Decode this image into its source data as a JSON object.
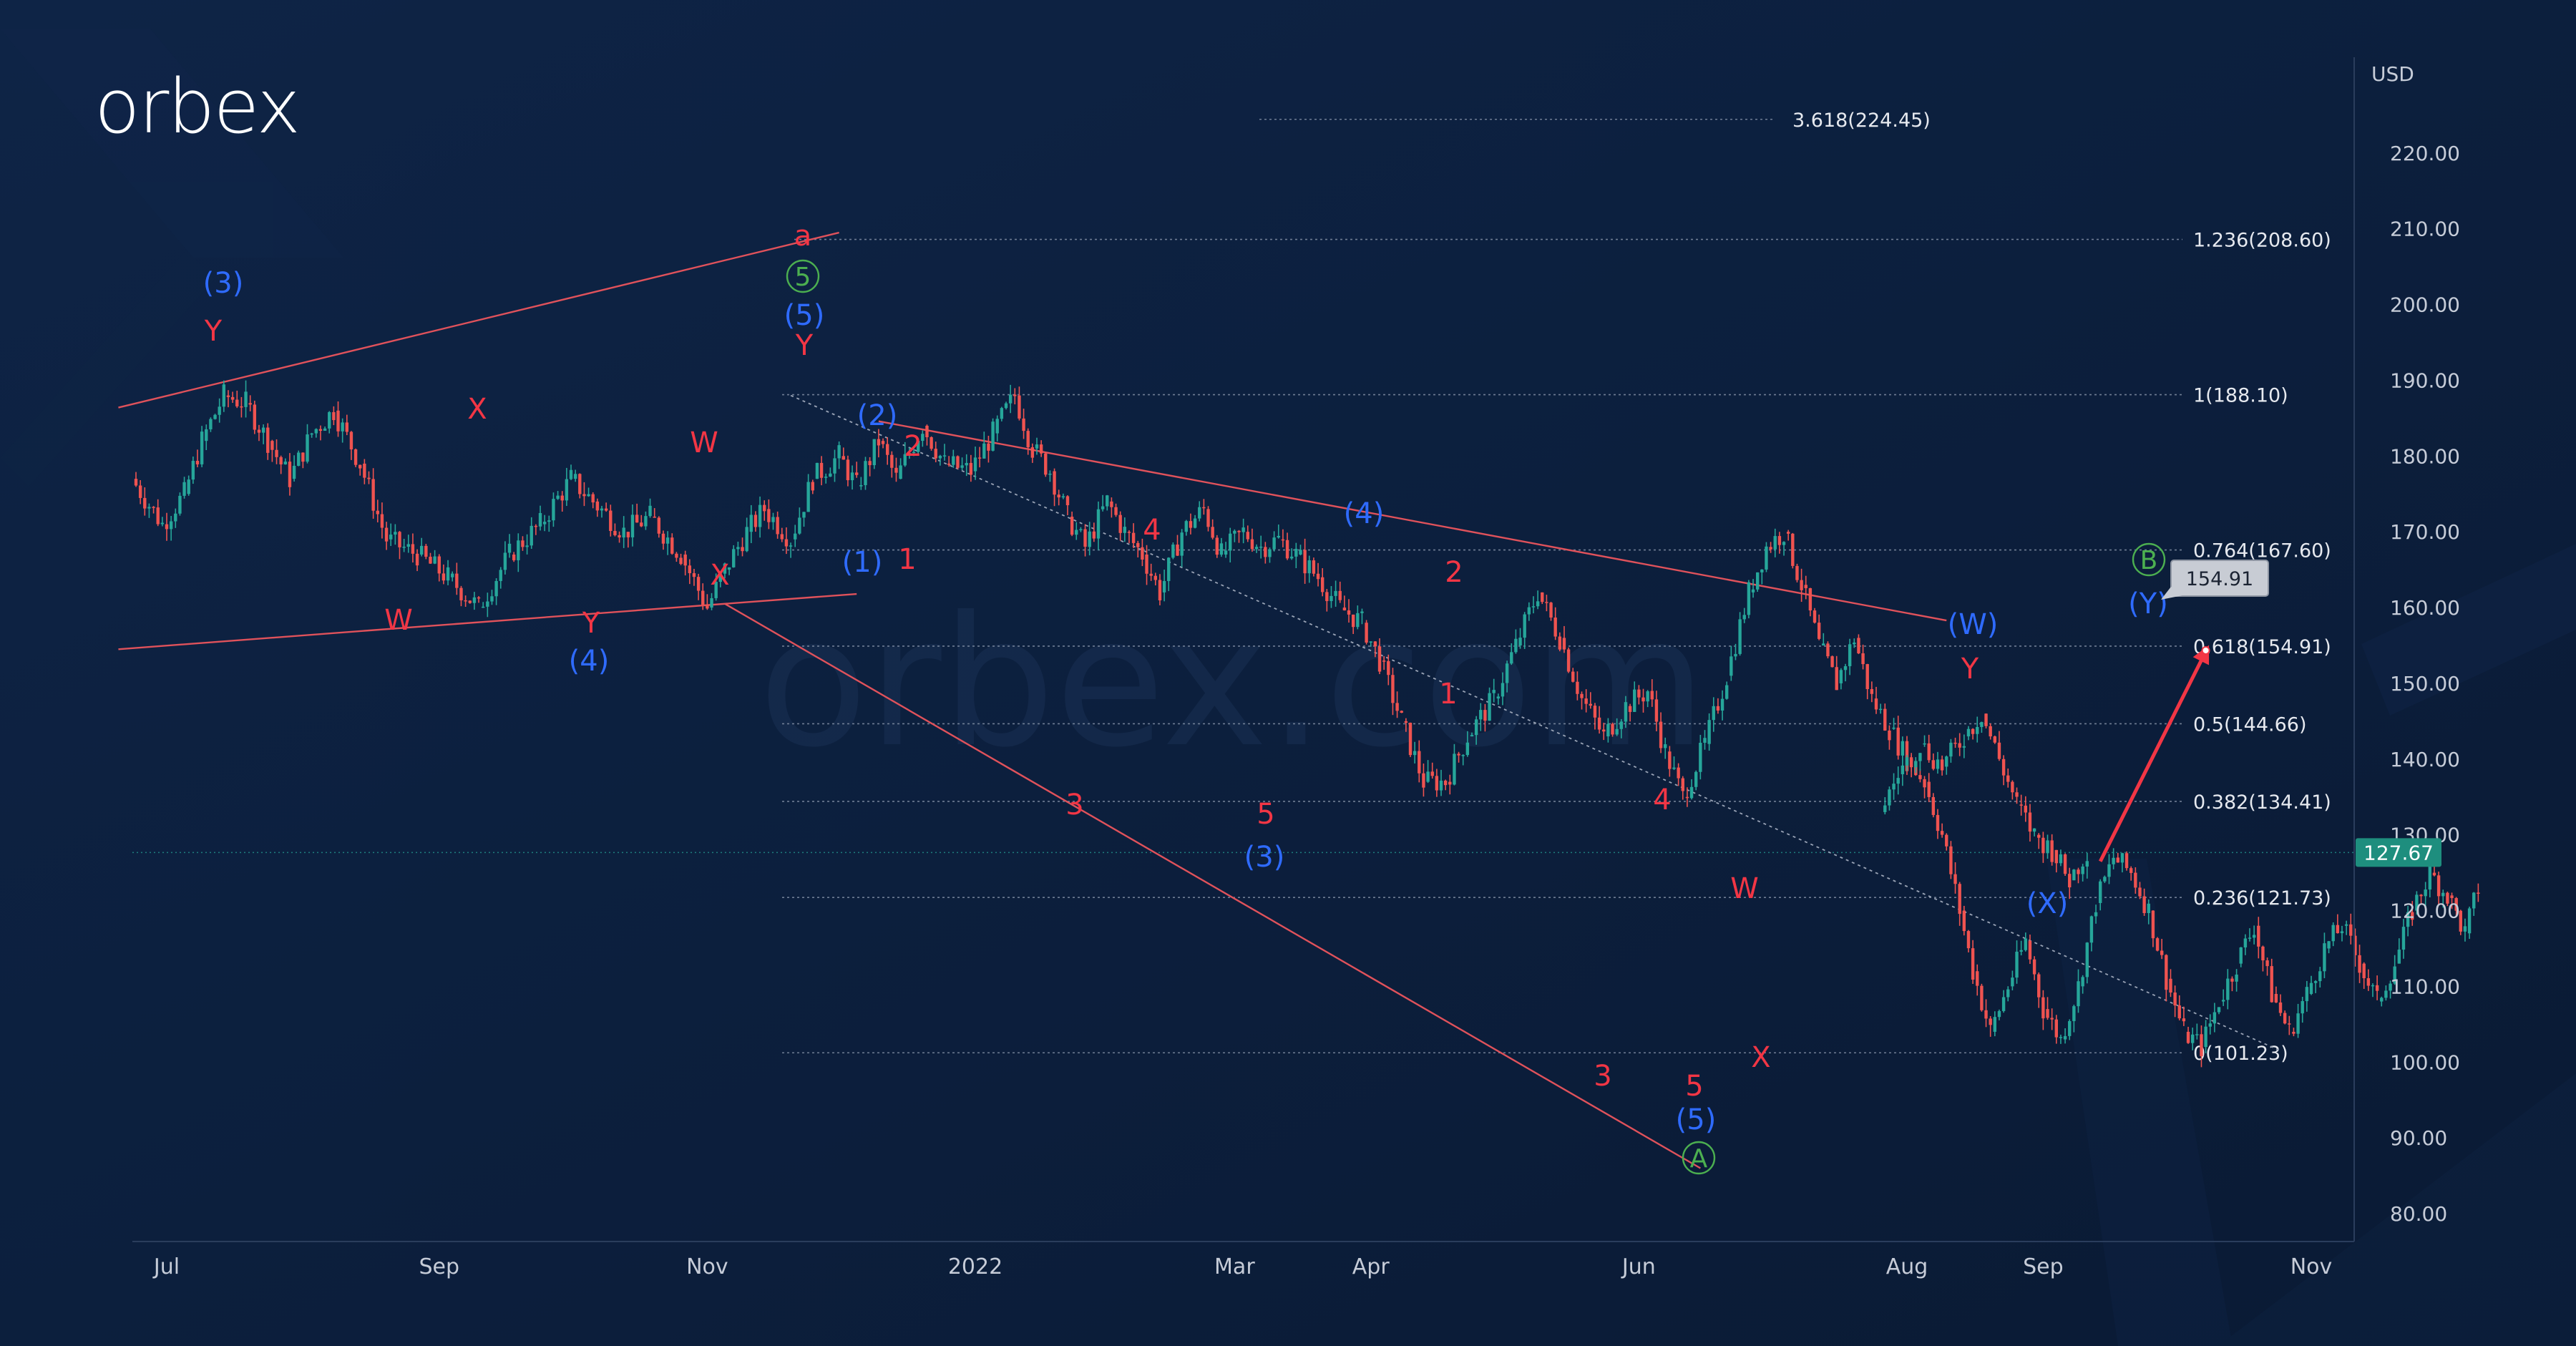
{
  "brand": {
    "logo_text": "orbex",
    "watermark": "orbex.com"
  },
  "colors": {
    "background": "#0b1d3a",
    "axis_text": "#c6ccd8",
    "bull_candle": "#26a69a",
    "bear_candle": "#ef5350",
    "red_label": "#f23645",
    "blue_label": "#2f6bff",
    "green_label": "#4caf50",
    "trendline": "#e0525b",
    "current_price_badge": "#1e8e7e",
    "target_badge": "#c8ccd4"
  },
  "chart_data": {
    "type": "line",
    "instrument_currency": "USD",
    "x_axis": {
      "ticks": [
        {
          "label": "Jul",
          "date": "2021-07-01"
        },
        {
          "label": "Sep",
          "date": "2021-09-01"
        },
        {
          "label": "Nov",
          "date": "2021-11-01"
        },
        {
          "label": "2022",
          "date": "2022-01-01"
        },
        {
          "label": "Mar",
          "date": "2022-03-01"
        },
        {
          "label": "Apr",
          "date": "2022-04-01"
        },
        {
          "label": "Jun",
          "date": "2022-06-01"
        },
        {
          "label": "Aug",
          "date": "2022-08-01"
        },
        {
          "label": "Sep",
          "date": "2022-09-01"
        },
        {
          "label": "Nov",
          "date": "2022-11-01"
        }
      ]
    },
    "y_axis": {
      "unit_label": "USD",
      "range": [
        75,
        232
      ],
      "ticks": [
        "220.00",
        "210.00",
        "200.00",
        "190.00",
        "180.00",
        "170.00",
        "160.00",
        "150.00",
        "140.00",
        "130.00",
        "120.00",
        "110.00",
        "100.00",
        "90.00",
        "80.00"
      ]
    },
    "price_path": [
      {
        "date": "2021-06-23",
        "price": 177
      },
      {
        "date": "2021-06-30",
        "price": 171
      },
      {
        "date": "2021-07-05",
        "price": 175
      },
      {
        "date": "2021-07-09",
        "price": 182
      },
      {
        "date": "2021-07-14",
        "price": 188
      },
      {
        "date": "2021-07-19",
        "price": 187
      },
      {
        "date": "2021-07-24",
        "price": 182
      },
      {
        "date": "2021-07-29",
        "price": 177
      },
      {
        "date": "2021-08-03",
        "price": 183
      },
      {
        "date": "2021-08-08",
        "price": 186
      },
      {
        "date": "2021-08-14",
        "price": 179
      },
      {
        "date": "2021-08-20",
        "price": 169
      },
      {
        "date": "2021-08-27",
        "price": 167
      },
      {
        "date": "2021-09-03",
        "price": 164
      },
      {
        "date": "2021-09-10",
        "price": 160
      },
      {
        "date": "2021-09-17",
        "price": 167
      },
      {
        "date": "2021-09-24",
        "price": 171
      },
      {
        "date": "2021-10-01",
        "price": 177
      },
      {
        "date": "2021-10-06",
        "price": 174
      },
      {
        "date": "2021-10-13",
        "price": 170
      },
      {
        "date": "2021-10-19",
        "price": 172
      },
      {
        "date": "2021-10-26",
        "price": 167
      },
      {
        "date": "2021-11-01",
        "price": 160
      },
      {
        "date": "2021-11-05",
        "price": 165
      },
      {
        "date": "2021-11-10",
        "price": 170
      },
      {
        "date": "2021-11-14",
        "price": 173
      },
      {
        "date": "2021-11-20",
        "price": 169
      },
      {
        "date": "2021-11-25",
        "price": 177
      },
      {
        "date": "2021-12-01",
        "price": 180
      },
      {
        "date": "2021-12-05",
        "price": 176
      },
      {
        "date": "2021-12-10",
        "price": 182
      },
      {
        "date": "2021-12-14",
        "price": 177
      },
      {
        "date": "2021-12-20",
        "price": 184
      },
      {
        "date": "2021-12-25",
        "price": 179
      },
      {
        "date": "2021-12-31",
        "price": 178
      },
      {
        "date": "2022-01-05",
        "price": 183
      },
      {
        "date": "2022-01-10",
        "price": 188
      },
      {
        "date": "2022-01-14",
        "price": 181
      },
      {
        "date": "2022-01-18",
        "price": 178
      },
      {
        "date": "2022-01-22",
        "price": 172
      },
      {
        "date": "2022-01-26",
        "price": 168
      },
      {
        "date": "2022-01-31",
        "price": 174
      },
      {
        "date": "2022-02-04",
        "price": 170
      },
      {
        "date": "2022-02-08",
        "price": 167
      },
      {
        "date": "2022-02-12",
        "price": 162
      },
      {
        "date": "2022-02-17",
        "price": 170
      },
      {
        "date": "2022-02-22",
        "price": 173
      },
      {
        "date": "2022-02-26",
        "price": 167
      },
      {
        "date": "2022-03-03",
        "price": 170
      },
      {
        "date": "2022-03-07",
        "price": 168
      },
      {
        "date": "2022-03-11",
        "price": 169
      },
      {
        "date": "2022-03-15",
        "price": 167
      },
      {
        "date": "2022-03-20",
        "price": 164
      },
      {
        "date": "2022-03-25",
        "price": 160
      },
      {
        "date": "2022-03-30",
        "price": 158
      },
      {
        "date": "2022-04-03",
        "price": 153
      },
      {
        "date": "2022-04-08",
        "price": 145
      },
      {
        "date": "2022-04-13",
        "price": 137
      },
      {
        "date": "2022-04-18",
        "price": 137
      },
      {
        "date": "2022-04-23",
        "price": 143
      },
      {
        "date": "2022-04-29",
        "price": 148
      },
      {
        "date": "2022-05-04",
        "price": 155
      },
      {
        "date": "2022-05-09",
        "price": 162
      },
      {
        "date": "2022-05-14",
        "price": 156
      },
      {
        "date": "2022-05-19",
        "price": 148
      },
      {
        "date": "2022-05-24",
        "price": 143
      },
      {
        "date": "2022-05-29",
        "price": 147
      },
      {
        "date": "2022-06-03",
        "price": 149
      },
      {
        "date": "2022-06-07",
        "price": 141
      },
      {
        "date": "2022-06-11",
        "price": 135
      },
      {
        "date": "2022-06-16",
        "price": 142
      },
      {
        "date": "2022-06-21",
        "price": 151
      },
      {
        "date": "2022-06-26",
        "price": 162
      },
      {
        "date": "2022-06-30",
        "price": 168
      },
      {
        "date": "2022-07-04",
        "price": 170
      },
      {
        "date": "2022-07-08",
        "price": 163
      },
      {
        "date": "2022-07-12",
        "price": 155
      },
      {
        "date": "2022-07-16",
        "price": 150
      },
      {
        "date": "2022-07-20",
        "price": 156
      },
      {
        "date": "2022-07-24",
        "price": 148
      },
      {
        "date": "2022-07-28",
        "price": 144
      },
      {
        "date": "2022-08-01",
        "price": 140
      },
      {
        "date": "2022-08-05",
        "price": 137
      },
      {
        "date": "2022-08-09",
        "price": 130
      },
      {
        "date": "2022-08-13",
        "price": 120
      },
      {
        "date": "2022-08-16",
        "price": 112
      },
      {
        "date": "2022-08-20",
        "price": 104
      },
      {
        "date": "2022-08-24",
        "price": 110
      },
      {
        "date": "2022-08-28",
        "price": 116
      },
      {
        "date": "2022-09-01",
        "price": 107
      },
      {
        "date": "2022-09-05",
        "price": 103
      },
      {
        "date": "2022-09-09",
        "price": 110
      },
      {
        "date": "2022-09-13",
        "price": 121
      },
      {
        "date": "2022-09-17",
        "price": 127
      },
      {
        "date": "2022-09-21",
        "price": 125
      },
      {
        "date": "2022-09-25",
        "price": 120
      },
      {
        "date": "2022-09-29",
        "price": 111
      },
      {
        "date": "2022-10-03",
        "price": 104
      },
      {
        "date": "2022-10-07",
        "price": 102
      },
      {
        "date": "2022-10-11",
        "price": 108
      },
      {
        "date": "2022-10-15",
        "price": 113
      },
      {
        "date": "2022-10-19",
        "price": 118
      },
      {
        "date": "2022-10-23",
        "price": 109
      },
      {
        "date": "2022-10-27",
        "price": 104
      },
      {
        "date": "2022-10-31",
        "price": 109
      },
      {
        "date": "2022-11-04",
        "price": 115
      },
      {
        "date": "2022-11-08",
        "price": 118
      },
      {
        "date": "2022-11-12",
        "price": 113
      },
      {
        "date": "2022-11-16",
        "price": 108
      },
      {
        "date": "2022-11-20",
        "price": 113
      },
      {
        "date": "2022-11-24",
        "price": 120
      },
      {
        "date": "2022-11-28",
        "price": 125
      },
      {
        "date": "2022-12-02",
        "price": 122
      },
      {
        "date": "2022-12-06",
        "price": 117
      },
      {
        "date": "2022-12-09",
        "price": 123
      }
    ],
    "price_path_2": [
      {
        "date": "2022-07-26",
        "price": 133
      },
      {
        "date": "2022-07-30",
        "price": 138
      },
      {
        "date": "2022-08-04",
        "price": 142
      },
      {
        "date": "2022-08-09",
        "price": 139
      },
      {
        "date": "2022-08-14",
        "price": 143
      },
      {
        "date": "2022-08-18",
        "price": 146
      },
      {
        "date": "2022-08-22",
        "price": 140
      },
      {
        "date": "2022-08-26",
        "price": 134
      },
      {
        "date": "2022-08-30",
        "price": 130
      },
      {
        "date": "2022-09-03",
        "price": 128
      },
      {
        "date": "2022-09-07",
        "price": 124
      },
      {
        "date": "2022-09-11",
        "price": 128
      }
    ],
    "fibonacci_levels": [
      {
        "label": "3.618(224.45)",
        "value": 224.45
      },
      {
        "label": "1.236(208.60)",
        "value": 208.6
      },
      {
        "label": "1(188.10)",
        "value": 188.1
      },
      {
        "label": "0.764(167.60)",
        "value": 167.6
      },
      {
        "label": "0.618(154.91)",
        "value": 154.91
      },
      {
        "label": "0.5(144.66)",
        "value": 144.66
      },
      {
        "label": "0.382(134.41)",
        "value": 134.41
      },
      {
        "label": "0.236(121.73)",
        "value": 121.73
      },
      {
        "label": "0(101.23)",
        "value": 101.23
      }
    ],
    "current_price": {
      "label": "127.67",
      "value": 127.67
    },
    "target_price": {
      "label": "154.91",
      "value": 154.91
    },
    "wave_labels": [
      {
        "text": "(3)",
        "color": "blue"
      },
      {
        "text": "Y",
        "color": "red"
      },
      {
        "text": "X",
        "color": "red"
      },
      {
        "text": "W",
        "color": "red"
      },
      {
        "text": "Y",
        "color": "red"
      },
      {
        "text": "(4)",
        "color": "blue"
      },
      {
        "text": "W",
        "color": "red"
      },
      {
        "text": "X",
        "color": "red"
      },
      {
        "text": "a",
        "color": "red"
      },
      {
        "text": "5",
        "color": "green",
        "circled": true
      },
      {
        "text": "(5)",
        "color": "blue"
      },
      {
        "text": "Y",
        "color": "red"
      },
      {
        "text": "(2)",
        "color": "blue"
      },
      {
        "text": "2",
        "color": "red"
      },
      {
        "text": "(1)",
        "color": "blue"
      },
      {
        "text": "1",
        "color": "red"
      },
      {
        "text": "4",
        "color": "red"
      },
      {
        "text": "3",
        "color": "red"
      },
      {
        "text": "5",
        "color": "red"
      },
      {
        "text": "(3)",
        "color": "blue"
      },
      {
        "text": "(4)",
        "color": "blue"
      },
      {
        "text": "2",
        "color": "red"
      },
      {
        "text": "1",
        "color": "red"
      },
      {
        "text": "4",
        "color": "red"
      },
      {
        "text": "3",
        "color": "red"
      },
      {
        "text": "5",
        "color": "red"
      },
      {
        "text": "(5)",
        "color": "blue"
      },
      {
        "text": "A",
        "color": "green",
        "circled": true
      },
      {
        "text": "W",
        "color": "red"
      },
      {
        "text": "X",
        "color": "red"
      },
      {
        "text": "(W)",
        "color": "blue"
      },
      {
        "text": "Y",
        "color": "red"
      },
      {
        "text": "(X)",
        "color": "blue"
      },
      {
        "text": "(Y)",
        "color": "blue"
      },
      {
        "text": "B",
        "color": "green",
        "circled": true
      }
    ]
  }
}
